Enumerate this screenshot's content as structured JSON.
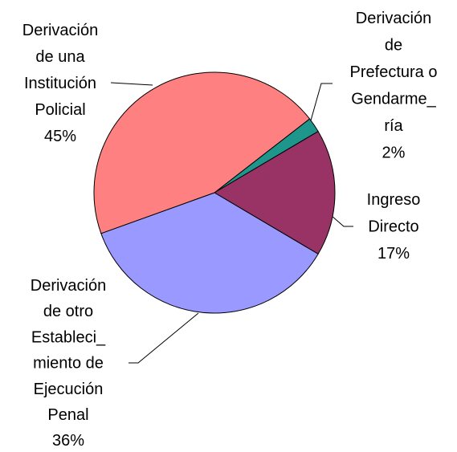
{
  "chart_data": {
    "type": "pie",
    "categories": [
      [
        "Derivación",
        "de",
        "Prefectura o",
        "Gendarme_",
        "ría"
      ],
      [
        "Ingreso",
        "Directo"
      ],
      [
        "Derivación",
        "de otro",
        "Estableci_",
        "miento de",
        "Ejecución",
        "Penal"
      ],
      [
        "Derivación",
        "de una",
        "Institución",
        "Policial"
      ]
    ],
    "values": [
      2,
      17,
      36,
      45
    ],
    "value_labels": [
      "2%",
      "17%",
      "36%",
      "45%"
    ],
    "colors": [
      "#1f968c",
      "#993366",
      "#9999ff",
      "#ff8080"
    ]
  }
}
